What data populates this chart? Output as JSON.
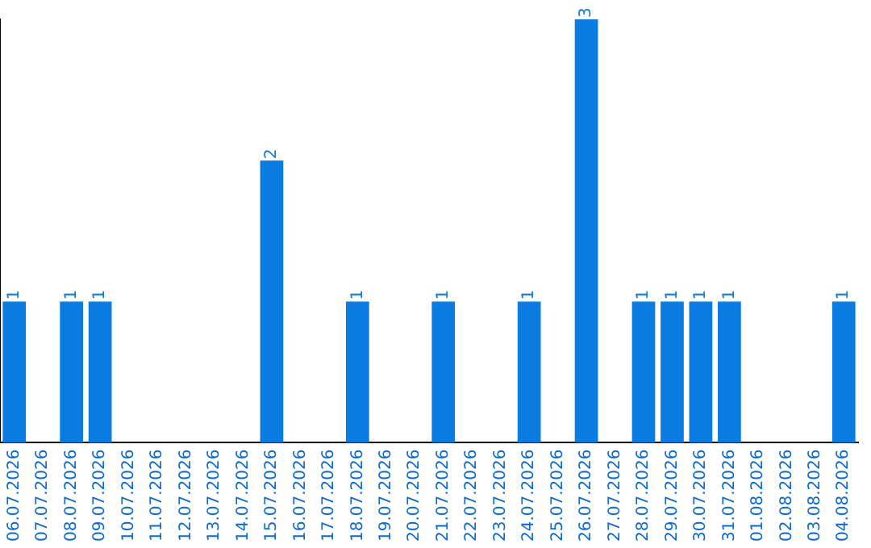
{
  "chart_data": {
    "type": "bar",
    "categories": [
      "06.07.2026",
      "07.07.2026",
      "08.07.2026",
      "09.07.2026",
      "10.07.2026",
      "11.07.2026",
      "12.07.2026",
      "13.07.2026",
      "14.07.2026",
      "15.07.2026",
      "16.07.2026",
      "17.07.2026",
      "18.07.2026",
      "19.07.2026",
      "20.07.2026",
      "21.07.2026",
      "22.07.2026",
      "23.07.2026",
      "24.07.2026",
      "25.07.2026",
      "26.07.2026",
      "27.07.2026",
      "28.07.2026",
      "29.07.2026",
      "30.07.2026",
      "31.07.2026",
      "01.08.2026",
      "02.08.2026",
      "03.08.2026",
      "04.08.2026"
    ],
    "values": [
      1,
      0,
      1,
      1,
      0,
      0,
      0,
      0,
      0,
      2,
      0,
      0,
      1,
      0,
      0,
      1,
      0,
      0,
      1,
      0,
      3,
      0,
      1,
      1,
      1,
      1,
      0,
      0,
      0,
      1
    ],
    "value_labels": [
      "1",
      null,
      "1",
      "1",
      null,
      null,
      null,
      null,
      null,
      "2",
      null,
      null,
      "1",
      null,
      null,
      "1",
      null,
      null,
      "1",
      null,
      "3",
      null,
      "1",
      "1",
      "1",
      "1",
      null,
      null,
      null,
      "1"
    ],
    "color": "#0a7be0",
    "grid": false,
    "legend": false,
    "tick_labels": "x"
  }
}
